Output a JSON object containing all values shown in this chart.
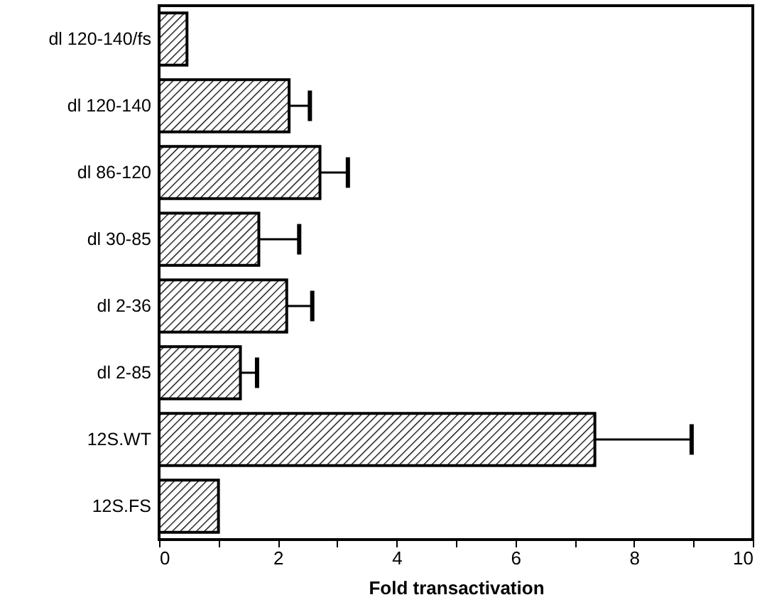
{
  "chart_data": {
    "type": "bar",
    "orientation": "horizontal",
    "xlabel": "Fold transactivation",
    "categories": [
      "dl 120-140/fs",
      "dl 120-140",
      "dl 86-120",
      "dl 30-85",
      "dl 2-36",
      "dl 2-85",
      "12S.WT",
      "12S.FS"
    ],
    "values": [
      0.47,
      2.19,
      2.71,
      1.68,
      2.15,
      1.37,
      7.34,
      1.0
    ],
    "errors": [
      null,
      [
        2.19,
        2.54
      ],
      [
        2.71,
        3.18
      ],
      [
        1.68,
        2.36
      ],
      [
        2.15,
        2.58
      ],
      [
        1.37,
        1.65
      ],
      [
        7.34,
        8.97
      ],
      null
    ],
    "color": "#000000",
    "xlim": [
      0,
      10
    ],
    "xticks": [
      0,
      {
        "value": 1,
        "label": null
      },
      2,
      {
        "value": 3,
        "label": null
      },
      4,
      {
        "value": 5,
        "label": null
      },
      6,
      {
        "value": 7,
        "label": null
      },
      8,
      {
        "value": 9,
        "label": null
      },
      10
    ],
    "grid": false
  }
}
